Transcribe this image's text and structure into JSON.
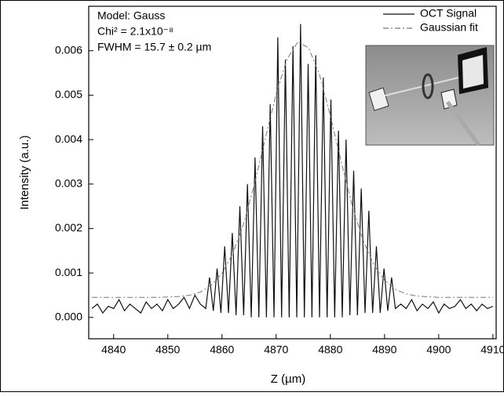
{
  "chart_data": {
    "type": "line",
    "x_label": "Z (µm)",
    "y_label": "Intensity (a.u.)",
    "annotations": [
      "Model: Gauss",
      "Chi² = 2.1x10⁻⁸",
      "FWHM = 15.7 ± 0.2 µm"
    ],
    "legend": "upper right",
    "xlim": [
      4835.4,
      4910.6
    ],
    "xticks": [
      4840,
      4850,
      4860,
      4870,
      4880,
      4890,
      4900,
      4910
    ],
    "ylim": [
      -0.00048,
      0.007
    ],
    "yticks": [
      {
        "value": 0,
        "label": "0.000"
      },
      {
        "value": 0.001,
        "label": "0.001"
      },
      {
        "value": 0.002,
        "label": "0.002"
      },
      {
        "value": 0.003,
        "label": "0.003"
      },
      {
        "value": 0.004,
        "label": "0.004"
      },
      {
        "value": 0.005,
        "label": "0.005"
      },
      {
        "value": 0.006,
        "label": "0.006"
      }
    ],
    "series": [
      {
        "name": "OCT Signal",
        "color": "#111111",
        "linestyle": "solid",
        "x": [
          4836,
          4837,
          4838,
          4839,
          4840,
          4841,
          4842,
          4843,
          4844,
          4845,
          4846,
          4847,
          4848,
          4849,
          4850,
          4851,
          4852,
          4853,
          4854,
          4855,
          4856,
          4857.0,
          4857.7,
          4858.4,
          4859.1,
          4859.8,
          4860.5,
          4861.2,
          4861.9,
          4862.6,
          4863.3,
          4864.0,
          4864.7,
          4865.4,
          4866.1,
          4866.8,
          4867.5,
          4868.2,
          4868.9,
          4869.6,
          4870.3,
          4871.0,
          4871.7,
          4872.4,
          4873.1,
          4873.8,
          4874.5,
          4875.2,
          4875.9,
          4876.6,
          4877.3,
          4878.0,
          4878.7,
          4879.4,
          4880.1,
          4880.8,
          4881.5,
          4882.2,
          4882.9,
          4883.6,
          4884.3,
          4885.0,
          4885.7,
          4886.4,
          4887.1,
          4887.8,
          4888.5,
          4889.2,
          4889.9,
          4890.6,
          4891.3,
          4892.0,
          4893,
          4894,
          4895,
          4896,
          4897,
          4898,
          4899,
          4900,
          4901,
          4902,
          4903,
          4904,
          4905,
          4906,
          4907,
          4908,
          4909,
          4910
        ],
        "values": [
          0.0002,
          0.0003,
          0.0001,
          0.00025,
          0.0002,
          0.0004,
          0.00015,
          0.0003,
          0.0002,
          0.0001,
          0.00035,
          0.0002,
          0.0003,
          0.00015,
          0.0004,
          0.0002,
          0.0003,
          0.00045,
          0.0002,
          0.0005,
          0.0003,
          0.0002,
          0.0009,
          0.00015,
          0.0011,
          0.0001,
          0.0016,
          0.0001,
          0.0019,
          5e-05,
          0.0025,
          5e-05,
          0.003,
          0,
          0.0036,
          0,
          0.0043,
          0,
          0.0048,
          0,
          0.0063,
          0,
          0.0058,
          0,
          0.0061,
          0,
          0.0066,
          0,
          0.0057,
          0,
          0.0059,
          0,
          0.0054,
          0,
          0.0049,
          0,
          0.0042,
          0,
          0.004,
          5e-05,
          0.0033,
          5e-05,
          0.0029,
          0.0001,
          0.0024,
          0.0001,
          0.0016,
          0.0001,
          0.0011,
          0.00015,
          0.0009,
          0.0002,
          0.0003,
          0.0002,
          0.0004,
          0.00015,
          0.0003,
          0.0002,
          0.00035,
          0.0001,
          0.0003,
          0.0002,
          0.00025,
          0.0004,
          0.0002,
          0.0003,
          0.00015,
          0.0003,
          0.0002,
          0.00025
        ]
      },
      {
        "name": "Gaussian fit",
        "color": "#777777",
        "linestyle": "dashdot",
        "x": [
          4836,
          4840,
          4844,
          4848,
          4852,
          4854,
          4856,
          4858,
          4860,
          4862,
          4864,
          4866,
          4868,
          4870,
          4872,
          4874,
          4876,
          4878,
          4880,
          4882,
          4884,
          4886,
          4888,
          4890,
          4892,
          4894,
          4896,
          4900,
          4904,
          4908,
          4910
        ],
        "values": [
          0.00045,
          0.00045,
          0.00045,
          0.00045,
          0.00047,
          0.0005,
          0.00057,
          0.00072,
          0.00099,
          0.00144,
          0.00211,
          0.003,
          0.00403,
          0.00503,
          0.00581,
          0.0062,
          0.00606,
          0.00546,
          0.00454,
          0.0035,
          0.00253,
          0.00175,
          0.00119,
          0.00084,
          0.00063,
          0.00053,
          0.00048,
          0.00045,
          0.00045,
          0.00045,
          0.00045
        ]
      }
    ]
  }
}
